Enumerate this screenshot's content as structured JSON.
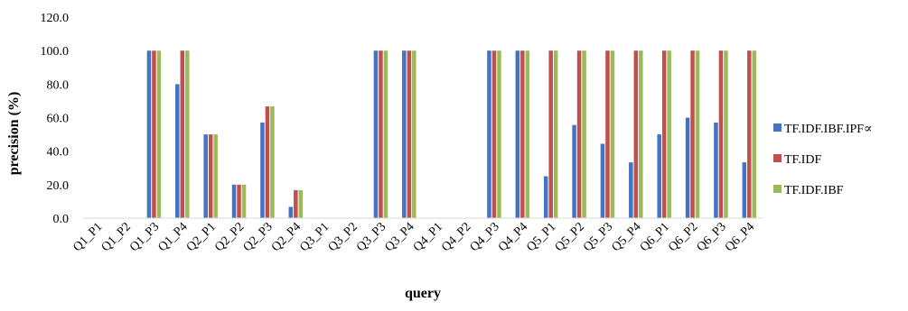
{
  "chart_data": {
    "type": "bar",
    "title": "",
    "xlabel": "query",
    "ylabel": "precision (%)",
    "ylim": [
      0,
      120
    ],
    "yticks": [
      "0.0",
      "20.0",
      "40.0",
      "60.0",
      "80.0",
      "100.0",
      "120.0"
    ],
    "grid": false,
    "legend_position": "right",
    "categories": [
      "Q1_P1",
      "Q1_P2",
      "Q1_P3",
      "Q1_P4",
      "Q2_P1",
      "Q2_P2",
      "Q2_P3",
      "Q2_P4",
      "Q3_P1",
      "Q3_P2",
      "Q3_P3",
      "Q3_P4",
      "Q4_P1",
      "Q4_P2",
      "Q4_P3",
      "Q4_P4",
      "Q5_P1",
      "Q5_P2",
      "Q5_P3",
      "Q5_P4",
      "Q6_P1",
      "Q6_P2",
      "Q6_P3",
      "Q6_P4"
    ],
    "series": [
      {
        "name": "TF.IDF.IBF.IPF∝",
        "color": "#4472C4",
        "values": [
          0,
          0,
          100,
          80,
          50,
          20,
          57.1,
          6.7,
          0,
          0,
          100,
          100,
          0,
          0,
          100,
          100,
          25,
          55.6,
          44.4,
          33.3,
          50,
          60,
          57.1,
          33.3
        ]
      },
      {
        "name": "TF.IDF",
        "color": "#C0504D",
        "values": [
          0,
          0,
          100,
          100,
          50,
          20,
          66.7,
          16.7,
          0,
          0,
          100,
          100,
          0,
          0,
          100,
          100,
          100,
          100,
          100,
          100,
          100,
          100,
          100,
          100
        ]
      },
      {
        "name": "TF.IDF.IBF",
        "color": "#9BBB59",
        "values": [
          0,
          0,
          100,
          100,
          50,
          20,
          66.7,
          16.7,
          0,
          0,
          100,
          100,
          0,
          0,
          100,
          100,
          100,
          100,
          100,
          100,
          100,
          100,
          100,
          100
        ]
      }
    ]
  }
}
